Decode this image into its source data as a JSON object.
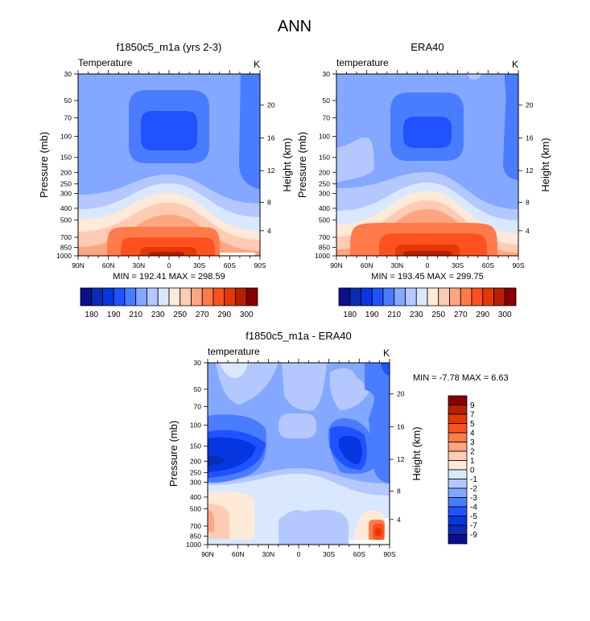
{
  "title": "ANN",
  "chart_data": [
    {
      "type": "contour",
      "title": "f1850c5_m1a (yrs 2-3)",
      "left_label": "Temperature",
      "units": "K",
      "ylabel": "Pressure (mb)",
      "ylabel_right": "Height (km)",
      "xticks": [
        "90N",
        "60N",
        "30N",
        "0",
        "30S",
        "60S",
        "90S"
      ],
      "yticks": [
        "30",
        "50",
        "70",
        "100",
        "150",
        "200",
        "250",
        "300",
        "400",
        "500",
        "700",
        "850",
        "1000"
      ],
      "yticks_right": [
        "4",
        "8",
        "12",
        "16",
        "20"
      ],
      "ylim": [
        1000,
        30
      ],
      "stats": "MIN = 192.41  MAX = 298.59",
      "min": 192.41,
      "max": 298.59,
      "colorbar": {
        "orientation": "horizontal",
        "labels": [
          "180",
          "190",
          "210",
          "230",
          "250",
          "270",
          "290",
          "300"
        ],
        "colors": [
          "#0a0f8c",
          "#0a2bb3",
          "#0637e0",
          "#2052ff",
          "#4a7cff",
          "#84a8ff",
          "#b4c8ff",
          "#d9e8ff",
          "#ffe9d8",
          "#ffcbb2",
          "#ffa57f",
          "#ff7b4c",
          "#ff5020",
          "#e43805",
          "#b42000",
          "#850000"
        ]
      }
    },
    {
      "type": "contour",
      "title": "ERA40",
      "left_label": "temperature",
      "units": "K",
      "ylabel": "Pressure (mb)",
      "ylabel_right": "Height (km)",
      "xticks": [
        "90N",
        "60N",
        "30N",
        "0",
        "30S",
        "60S",
        "90S"
      ],
      "yticks": [
        "30",
        "50",
        "70",
        "100",
        "150",
        "200",
        "250",
        "300",
        "400",
        "500",
        "700",
        "850",
        "1000"
      ],
      "yticks_right": [
        "4",
        "8",
        "12",
        "16",
        "20"
      ],
      "ylim": [
        1000,
        30
      ],
      "stats": "MIN = 193.45  MAX = 299.75",
      "min": 193.45,
      "max": 299.75,
      "colorbar": {
        "orientation": "horizontal",
        "labels": [
          "180",
          "190",
          "210",
          "230",
          "250",
          "270",
          "290",
          "300"
        ],
        "colors": [
          "#0a0f8c",
          "#0a2bb3",
          "#0637e0",
          "#2052ff",
          "#4a7cff",
          "#84a8ff",
          "#b4c8ff",
          "#d9e8ff",
          "#ffe9d8",
          "#ffcbb2",
          "#ffa57f",
          "#ff7b4c",
          "#ff5020",
          "#e43805",
          "#b42000",
          "#850000"
        ]
      }
    },
    {
      "type": "contour",
      "title": "f1850c5_m1a - ERA40",
      "left_label": "temperature",
      "units": "K",
      "ylabel": "Pressure (mb)",
      "ylabel_right": "Height (km)",
      "xticks": [
        "90N",
        "60N",
        "30N",
        "0",
        "30S",
        "60S",
        "90S"
      ],
      "yticks": [
        "30",
        "50",
        "70",
        "100",
        "150",
        "200",
        "250",
        "300",
        "400",
        "500",
        "700",
        "850",
        "1000"
      ],
      "yticks_right": [
        "4",
        "8",
        "12",
        "16",
        "20"
      ],
      "ylim": [
        1000,
        30
      ],
      "stats": "MIN =  -7.78  MAX =   6.63",
      "min": -7.78,
      "max": 6.63,
      "colorbar": {
        "orientation": "vertical",
        "labels": [
          "9",
          "7",
          "5",
          "4",
          "3",
          "2",
          "1",
          "0",
          "-1",
          "-2",
          "-3",
          "-4",
          "-5",
          "-7",
          "-9"
        ],
        "colors": [
          "#850000",
          "#b42000",
          "#e43805",
          "#ff5020",
          "#ff7b4c",
          "#ffa57f",
          "#ffcbb2",
          "#ffe9d8",
          "#d9e8ff",
          "#b4c8ff",
          "#84a8ff",
          "#4a7cff",
          "#2052ff",
          "#0637e0",
          "#0a2bb3",
          "#0a0f8c"
        ]
      }
    }
  ]
}
